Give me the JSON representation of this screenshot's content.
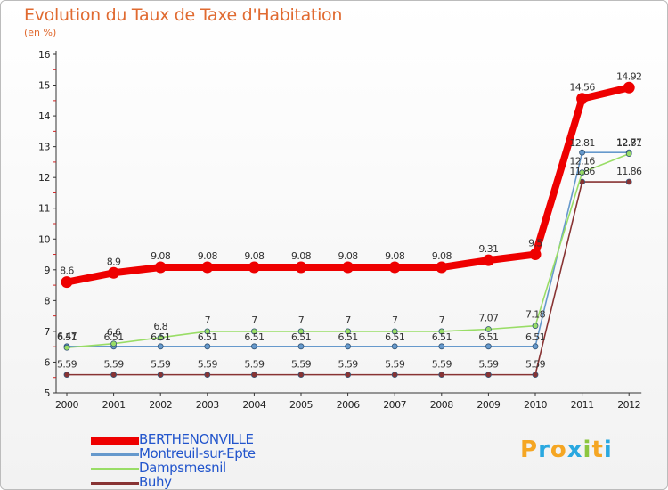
{
  "header": {
    "title": "Evolution du Taux de Taxe d'Habitation",
    "subtitle": "(en %)"
  },
  "logo": {
    "letters": [
      "P",
      "r",
      "o",
      "x",
      "i",
      "t",
      "i"
    ],
    "colors": [
      "#f5a623",
      "#2aa8e0",
      "#f5a623",
      "#2aa8e0",
      "#8cc63f",
      "#f5a623",
      "#2aa8e0"
    ]
  },
  "chart_data": {
    "type": "line",
    "x": [
      "2000",
      "2001",
      "2002",
      "2003",
      "2004",
      "2005",
      "2006",
      "2007",
      "2008",
      "2009",
      "2010",
      "2011",
      "2012"
    ],
    "ylim": [
      5,
      16
    ],
    "yticks": [
      "5",
      "6",
      "7",
      "8",
      "9",
      "10",
      "11",
      "12",
      "13",
      "14",
      "15",
      "16"
    ],
    "grid": false,
    "series": [
      {
        "name": "BERTHENONVILLE",
        "color": "#ee0000",
        "legend_color": "#2255cc",
        "values": [
          8.6,
          8.9,
          9.08,
          9.08,
          9.08,
          9.08,
          9.08,
          9.08,
          9.08,
          9.31,
          9.5,
          14.56,
          14.92
        ],
        "labels": [
          "8.6",
          "8.9",
          "9.08",
          "9.08",
          "9.08",
          "9.08",
          "9.08",
          "9.08",
          "9.08",
          "9.31",
          "9.5",
          "14.56",
          "14.92"
        ]
      },
      {
        "name": "Montreuil-sur-Epte",
        "color": "#6699cc",
        "legend_color": "#2255cc",
        "values": [
          6.51,
          6.51,
          6.51,
          6.51,
          6.51,
          6.51,
          6.51,
          6.51,
          6.51,
          6.51,
          6.51,
          12.81,
          12.81
        ],
        "labels": [
          "6.51",
          "6.51",
          "6.51",
          "6.51",
          "6.51",
          "6.51",
          "6.51",
          "6.51",
          "6.51",
          "6.51",
          "6.51",
          "12.81",
          "12.81"
        ]
      },
      {
        "name": "Dampsmesnil",
        "color": "#99dd66",
        "legend_color": "#2255cc",
        "values": [
          6.47,
          6.6,
          6.8,
          7,
          7,
          7,
          7,
          7,
          7,
          7.07,
          7.18,
          12.16,
          12.77
        ],
        "labels": [
          "6.47",
          "6.6",
          "6.8",
          "7",
          "7",
          "7",
          "7",
          "7",
          "7",
          "7.07",
          "7.18",
          "12.16",
          "12.77"
        ]
      },
      {
        "name": "Buhy",
        "color": "#883333",
        "legend_color": "#2255cc",
        "values": [
          5.59,
          5.59,
          5.59,
          5.59,
          5.59,
          5.59,
          5.59,
          5.59,
          5.59,
          5.59,
          5.59,
          11.86,
          11.86
        ],
        "labels": [
          "5.59",
          "5.59",
          "5.59",
          "5.59",
          "5.59",
          "5.59",
          "5.59",
          "5.59",
          "5.59",
          "5.59",
          "5.59",
          "11.86",
          "11.86"
        ]
      }
    ]
  }
}
